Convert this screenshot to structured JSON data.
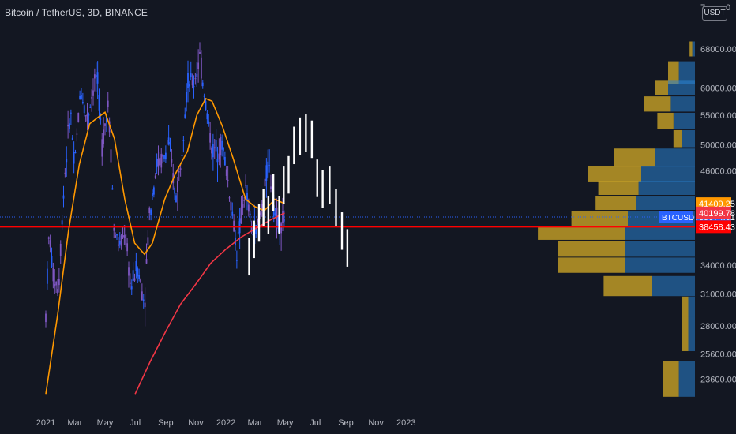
{
  "header": {
    "title": "Bitcoin / TetherUS, 3D, BINANCE",
    "currency": "USDT",
    "corner_left": "7",
    "corner_right": "0"
  },
  "colors": {
    "background": "#131722",
    "candle_blue": "#2962ff",
    "candle_purple": "#7e57c2",
    "ma_short": "#ff9800",
    "ma_long": "#f23645",
    "projection": "#ffffff",
    "support_line": "#ff0000",
    "vp_up": "#2a84d4",
    "vp_down": "#c9a227"
  },
  "chart_data": {
    "type": "candlestick",
    "symbol": "BTCUSDT",
    "interval": "3D",
    "exchange": "BINANCE",
    "x_ticks": [
      "2021",
      "Mar",
      "May",
      "Jul",
      "Sep",
      "Nov",
      "2022",
      "Mar",
      "May",
      "Jul",
      "Sep",
      "Nov",
      "2023"
    ],
    "y_ticks": [
      23600,
      25600,
      28000,
      31000,
      34000,
      38458.43,
      39674.61,
      40199.78,
      41409.25,
      46000,
      50000,
      55000,
      60000,
      68000
    ],
    "y_tick_labels": [
      "23600.00",
      "25600.00",
      "28000.00",
      "31000.00",
      "34000.00",
      "38458.43",
      "39674.61",
      "40199.78",
      "41409.25",
      "46000.00",
      "50000.00",
      "55000.00",
      "60000.00",
      "68000.00"
    ],
    "price_labels": [
      {
        "name": "BTCUSDT",
        "value": 39674.61,
        "text": "39674.61",
        "sub": "2d 8h",
        "color": "#2962ff"
      },
      {
        "value": 41409.25,
        "text": "41409.25",
        "color": "#ff9800"
      },
      {
        "value": 40199.78,
        "text": "40199.78",
        "color": "#f23645"
      },
      {
        "value": 38458.43,
        "text": "38458.43",
        "color": "#ff0000"
      }
    ],
    "horizontal_line": 38458.43,
    "current_price": 39674.61,
    "close_path": [
      [
        "2021-01-01",
        29000
      ],
      [
        "2021-01-08",
        38000
      ],
      [
        "2021-01-15",
        33000
      ],
      [
        "2021-01-27",
        31500
      ],
      [
        "2021-02-08",
        45000
      ],
      [
        "2021-02-20",
        56000
      ],
      [
        "2021-02-28",
        46000
      ],
      [
        "2021-03-13",
        60000
      ],
      [
        "2021-03-25",
        54000
      ],
      [
        "2021-04-14",
        63000
      ],
      [
        "2021-04-25",
        50000
      ],
      [
        "2021-05-07",
        57000
      ],
      [
        "2021-05-13",
        49000
      ],
      [
        "2021-05-19",
        38000
      ],
      [
        "2021-06-01",
        36000
      ],
      [
        "2021-06-10",
        38000
      ],
      [
        "2021-06-22",
        31500
      ],
      [
        "2021-07-05",
        34000
      ],
      [
        "2021-07-20",
        30000
      ],
      [
        "2021-07-30",
        40000
      ],
      [
        "2021-08-14",
        47000
      ],
      [
        "2021-08-30",
        48000
      ],
      [
        "2021-09-06",
        51000
      ],
      [
        "2021-09-21",
        42000
      ],
      [
        "2021-10-01",
        47000
      ],
      [
        "2021-10-15",
        61000
      ],
      [
        "2021-10-28",
        61000
      ],
      [
        "2021-11-09",
        66000
      ],
      [
        "2021-11-21",
        57000
      ],
      [
        "2021-12-04",
        49000
      ],
      [
        "2021-12-25",
        50000
      ],
      [
        "2022-01-10",
        42000
      ],
      [
        "2022-01-23",
        35500
      ],
      [
        "2022-02-09",
        43500
      ],
      [
        "2022-02-24",
        37500
      ],
      [
        "2022-03-10",
        39000
      ],
      [
        "2022-03-28",
        47000
      ],
      [
        "2022-04-11",
        40000
      ],
      [
        "2022-04-22",
        39000
      ],
      [
        "2022-04-30",
        39674
      ]
    ],
    "ma_short": [
      [
        "2021-01-01",
        22500
      ],
      [
        "2021-01-25",
        29000
      ],
      [
        "2021-02-16",
        38000
      ],
      [
        "2021-03-10",
        47000
      ],
      [
        "2021-03-31",
        53500
      ],
      [
        "2021-04-15",
        54500
      ],
      [
        "2021-05-01",
        55500
      ],
      [
        "2021-05-20",
        51000
      ],
      [
        "2021-06-10",
        42000
      ],
      [
        "2021-06-30",
        36500
      ],
      [
        "2021-07-20",
        35200
      ],
      [
        "2021-08-05",
        36500
      ],
      [
        "2021-08-30",
        42000
      ],
      [
        "2021-09-20",
        45500
      ],
      [
        "2021-10-15",
        49000
      ],
      [
        "2021-11-03",
        55000
      ],
      [
        "2021-11-21",
        58000
      ],
      [
        "2021-12-04",
        57500
      ],
      [
        "2021-12-25",
        53000
      ],
      [
        "2022-01-15",
        48000
      ],
      [
        "2022-02-10",
        42000
      ],
      [
        "2022-03-01",
        41000
      ],
      [
        "2022-03-20",
        40500
      ],
      [
        "2022-04-10",
        42000
      ],
      [
        "2022-04-30",
        41409
      ]
    ],
    "ma_long": [
      [
        "2021-07-01",
        22500
      ],
      [
        "2021-08-01",
        25000
      ],
      [
        "2021-09-01",
        27500
      ],
      [
        "2021-10-01",
        30000
      ],
      [
        "2021-11-01",
        32000
      ],
      [
        "2021-12-01",
        34200
      ],
      [
        "2022-01-01",
        35800
      ],
      [
        "2022-02-01",
        37200
      ],
      [
        "2022-03-01",
        38200
      ],
      [
        "2022-04-01",
        39300
      ],
      [
        "2022-04-30",
        40199
      ]
    ],
    "projection_path": [
      [
        "2022-02-17",
        35000
      ],
      [
        "2022-02-27",
        37000
      ],
      [
        "2022-03-09",
        39000
      ],
      [
        "2022-03-18",
        41000
      ],
      [
        "2022-03-28",
        40000
      ],
      [
        "2022-04-07",
        43000
      ],
      [
        "2022-04-19",
        40000
      ],
      [
        "2022-04-28",
        44000
      ],
      [
        "2022-05-08",
        45500
      ],
      [
        "2022-05-19",
        50000
      ],
      [
        "2022-05-31",
        51500
      ],
      [
        "2022-06-12",
        52000
      ],
      [
        "2022-06-24",
        51000
      ],
      [
        "2022-07-05",
        45000
      ],
      [
        "2022-07-16",
        43500
      ],
      [
        "2022-07-30",
        44000
      ],
      [
        "2022-08-12",
        41000
      ],
      [
        "2022-08-24",
        38000
      ],
      [
        "2022-09-04",
        36000
      ]
    ],
    "volume_profile": [
      {
        "price": 68000,
        "up": 0.02,
        "down": 0.02
      },
      {
        "price": 63000,
        "up": 0.12,
        "down": 0.08
      },
      {
        "price": 60000,
        "up": 0.2,
        "down": 0.1
      },
      {
        "price": 57000,
        "up": 0.18,
        "down": 0.2
      },
      {
        "price": 54000,
        "up": 0.16,
        "down": 0.12
      },
      {
        "price": 51000,
        "up": 0.1,
        "down": 0.06
      },
      {
        "price": 48000,
        "up": 0.3,
        "down": 0.3
      },
      {
        "price": 45500,
        "up": 0.4,
        "down": 0.4
      },
      {
        "price": 43500,
        "up": 0.42,
        "down": 0.3
      },
      {
        "price": 41500,
        "up": 0.44,
        "down": 0.3
      },
      {
        "price": 39500,
        "up": 0.5,
        "down": 0.42
      },
      {
        "price": 37700,
        "up": 0.52,
        "down": 0.65
      },
      {
        "price": 35800,
        "up": 0.52,
        "down": 0.5
      },
      {
        "price": 34000,
        "up": 0.52,
        "down": 0.5
      },
      {
        "price": 31800,
        "up": 0.32,
        "down": 0.36
      },
      {
        "price": 29800,
        "up": 0.05,
        "down": 0.05
      },
      {
        "price": 28000,
        "up": 0.05,
        "down": 0.05
      },
      {
        "price": 26500,
        "up": 0.05,
        "down": 0.05
      },
      {
        "price": 23600,
        "up": 0.12,
        "down": 0.12
      }
    ]
  }
}
